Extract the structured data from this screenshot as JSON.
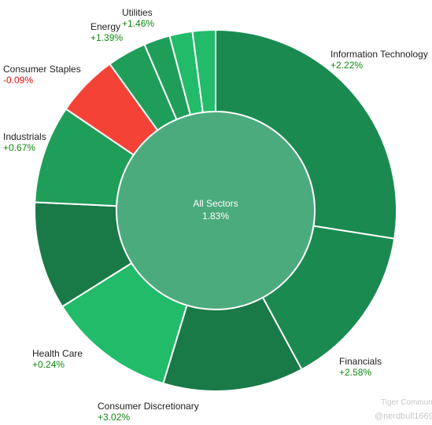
{
  "chart_data": {
    "type": "pie",
    "center": {
      "title": "All Sectors",
      "value": "1.83%"
    },
    "colors": {
      "up_dark": "#1b8a51",
      "up_mid": "#1f9e5a",
      "up_light": "#22bb6a",
      "down": "#f44336",
      "center": "#4cab7d",
      "text_up": "#118811",
      "text_down": "#dd1111"
    },
    "slices": [
      {
        "name": "Information Technology",
        "change": "+2.22%",
        "weight": 94,
        "color": "#1b8a51"
      },
      {
        "name": "Financials",
        "change": "+2.58%",
        "weight": 50,
        "color": "#1b8a51"
      },
      {
        "name": "Consumer Discretionary",
        "change": "+3.02%",
        "weight": 43,
        "color": "#1a7a47"
      },
      {
        "name": "Health Care",
        "change": "+0.24%",
        "weight": 39,
        "color": "#22bb6a"
      },
      {
        "name": "",
        "change": "",
        "weight": 33,
        "color": "#1a7a47"
      },
      {
        "name": "Industrials",
        "change": "+0.67%",
        "weight": 30,
        "color": "#1f9e5a"
      },
      {
        "name": "Consumer Staples",
        "change": "-0.09%",
        "weight": 19,
        "color": "#f44336"
      },
      {
        "name": "Energy",
        "change": "+1.39%",
        "weight": 12,
        "color": "#1f9e5a"
      },
      {
        "name": "",
        "change": "",
        "weight": 8,
        "color": "#1f9e5a"
      },
      {
        "name": "Utilities",
        "change": "+1.46%",
        "weight": 7,
        "color": "#22bb6a"
      },
      {
        "name": "",
        "change": "",
        "weight": 7,
        "color": "#22bb6a"
      }
    ]
  },
  "watermark": {
    "brand": "Tiger Community",
    "handle": "@nerdbull1669"
  }
}
